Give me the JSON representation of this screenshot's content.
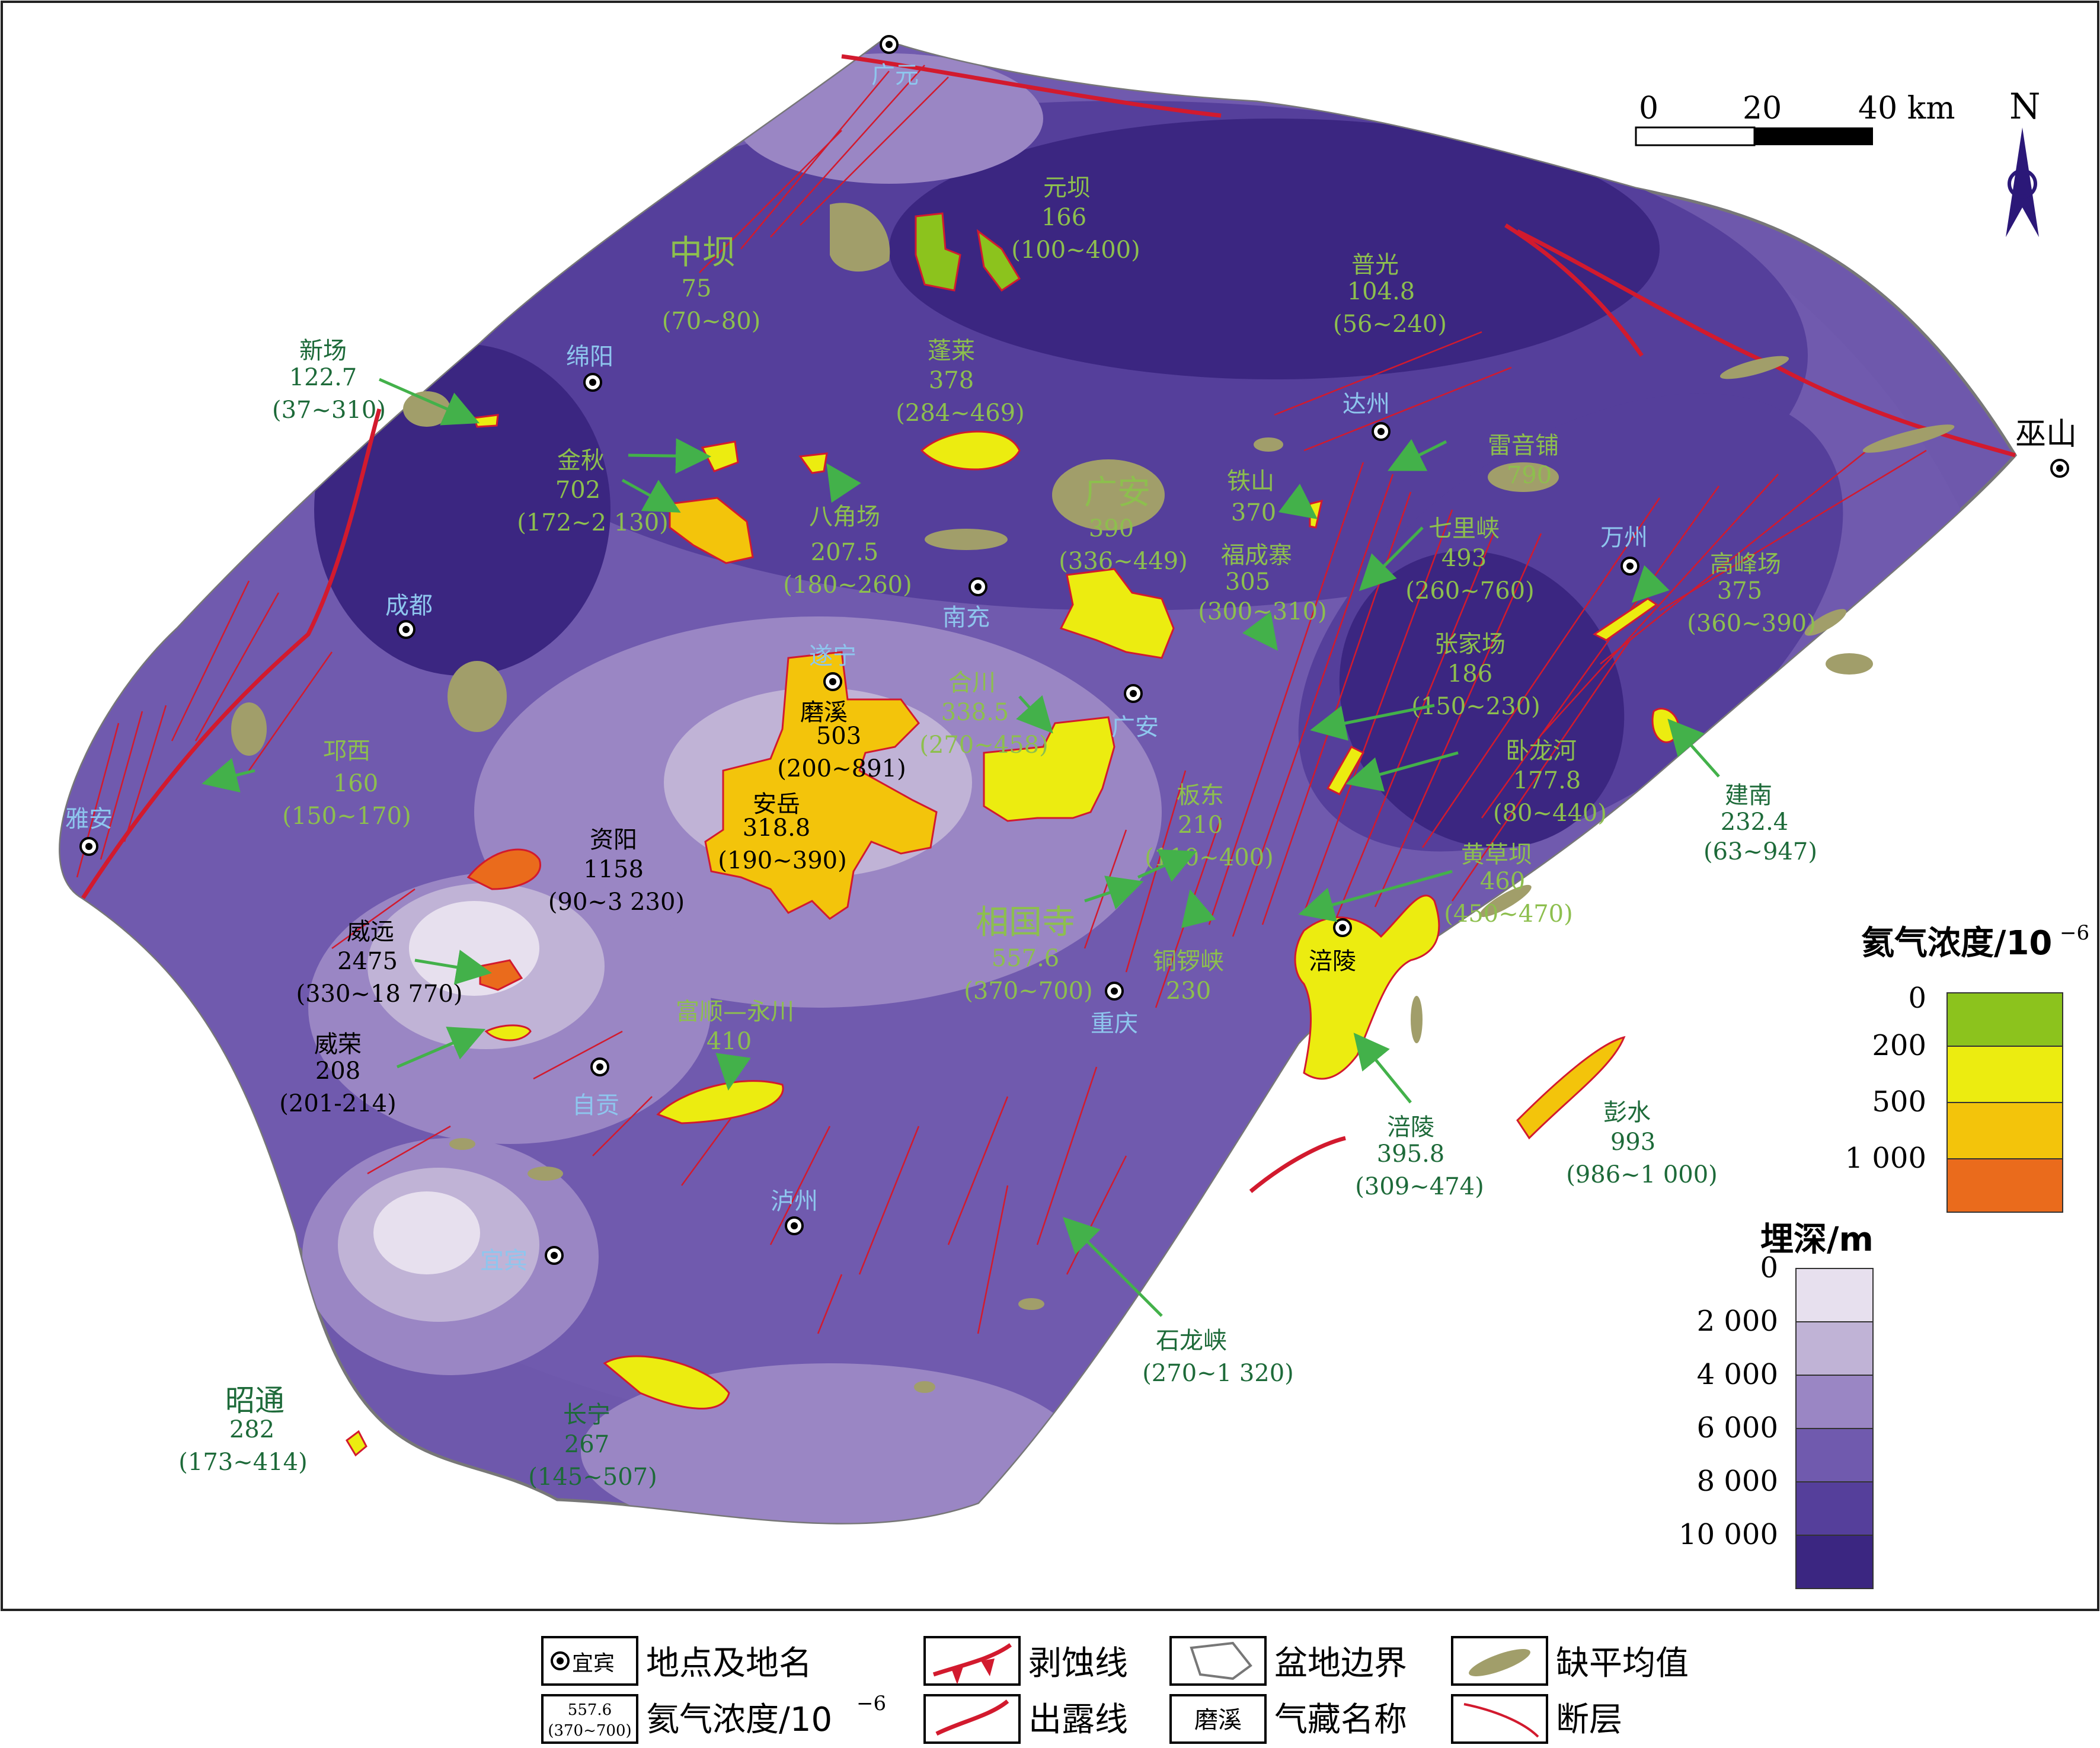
{
  "colors": {
    "depth": [
      "#e7e0ee",
      "#c0b3d6",
      "#9a86c4",
      "#705aae",
      "#553f9b",
      "#3b2681"
    ],
    "helium": [
      "#8cc31d",
      "#ecec10",
      "#f3c40b",
      "#ea6b1c"
    ],
    "missing_values": "#a19e6a",
    "fault_red": "#d21a2e",
    "city_blue": "#8ec6ee",
    "gas_green": "#8dbf4e",
    "dark_green": "#1d6a39",
    "arrow_green": "#43b14a"
  },
  "scale_bar": {
    "ticks": [
      "0",
      "20",
      "40 km"
    ]
  },
  "north": {
    "label": "N",
    "icon": "north-arrow-icon"
  },
  "cities": {
    "guangyuan": "广元",
    "mianyang": "绵阳",
    "dazhou": "达州",
    "wushan": "巫山",
    "wanzhou": "万州",
    "chengdu": "成都",
    "nanchong": "南充",
    "suining": "遂宁",
    "guangan": "广安",
    "ya_an": "雅安",
    "chongqing": "重庆",
    "fuling": "涪陵",
    "zigong": "自贡",
    "luzhou": "泸州",
    "yibin": "宜宾"
  },
  "gas_fields": {
    "zhongba": {
      "name": "中坝",
      "value": "75",
      "range": "(70~80)"
    },
    "yuanba": {
      "name": "元坝",
      "value": "166",
      "range": "(100~400)"
    },
    "puguang": {
      "name": "普光",
      "value": "104.8",
      "range": "(56~240)"
    },
    "xinchang": {
      "name": "新场",
      "value": "122.7",
      "range": "(37~310)"
    },
    "penglai": {
      "name": "蓬莱",
      "value": "378",
      "range": "(284~469)"
    },
    "jinqiu": {
      "name": "金秋",
      "value": "702",
      "range": "(172~2 130)"
    },
    "bajiaochang": {
      "name": "八角场",
      "value": "207.5",
      "range": "(180~260)"
    },
    "guangan": {
      "name": "广安",
      "value": "390",
      "range": "(336~449)"
    },
    "leiyinpu": {
      "name": "雷音铺",
      "value": "790"
    },
    "tieshan": {
      "name": "铁山",
      "value": "370"
    },
    "qilixia": {
      "name": "七里峡",
      "value": "493",
      "range": "(260~760)"
    },
    "fuchengzhai": {
      "name": "福成寨",
      "value": "305",
      "range": "(300~310)"
    },
    "gaofengchang": {
      "name": "高峰场",
      "value": "375",
      "range": "(360~390)"
    },
    "zhangjiachang": {
      "name": "张家场",
      "value": "186",
      "range": "(150~230)"
    },
    "moxi": {
      "name": "磨溪",
      "value": "503",
      "range": "(200~891)"
    },
    "hechuan": {
      "name": "合川",
      "value": "338.5",
      "range": "(270~458)"
    },
    "anyue": {
      "name": "安岳",
      "value": "318.8",
      "range": "(190~390)"
    },
    "qiongxi": {
      "name": "邛西",
      "value": "160",
      "range": "(150~170)"
    },
    "wolonghe": {
      "name": "卧龙河",
      "value": "177.8",
      "range": "(80~440)"
    },
    "jiannan": {
      "name": "建南",
      "value": "232.4",
      "range": "(63~947)"
    },
    "bandong": {
      "name": "板东",
      "value": "210",
      "range": "(110~400)"
    },
    "huangcaoba": {
      "name": "黄草坝",
      "value": "460",
      "range": "(450~470)"
    },
    "ziyang": {
      "name": "资阳",
      "value": "1158",
      "range": "(90~3 230)"
    },
    "weiyuan": {
      "name": "威远",
      "value": "2475",
      "range": "(330~18 770)"
    },
    "xiangguosi": {
      "name": "相国寺",
      "value": "557.6",
      "range": "(370~700)"
    },
    "tongluoxia": {
      "name": "铜锣峡",
      "value": "230"
    },
    "weirong": {
      "name": "威荣",
      "value": "208",
      "range": "(201-214)"
    },
    "fushun": {
      "name": "富顺—永川",
      "value": "410"
    },
    "fuling": {
      "name": "涪陵",
      "value": "395.8",
      "range": "(309~474)"
    },
    "pengshui": {
      "name": "彭水",
      "value": "993",
      "range": "(986~1 000)"
    },
    "shilongxia": {
      "name": "石龙峡",
      "range": "(270~1 320)"
    },
    "zhaotong": {
      "name": "昭通",
      "value": "282",
      "range": "(173~414)"
    },
    "changning": {
      "name": "长宁",
      "value": "267",
      "range": "(145~507)"
    }
  },
  "helium_legend": {
    "title": "氦气浓度/10",
    "exp": "−6",
    "ticks": [
      "0",
      "200",
      "500",
      "1 000"
    ]
  },
  "depth_legend": {
    "title": "埋深/m",
    "ticks": [
      "0",
      "2 000",
      "4 000",
      "6 000",
      "8 000",
      "10 000"
    ]
  },
  "bottom_legend": {
    "location": {
      "sample": "宜宾",
      "label": "地点及地名"
    },
    "erosion": {
      "label": "剥蚀线"
    },
    "boundary": {
      "label": "盆地边界"
    },
    "missing": {
      "label": "缺平均值"
    },
    "helium": {
      "sample_value": "557.6",
      "sample_range": "(370~700)",
      "label": "氦气浓度/10",
      "exp": "−6"
    },
    "outcrop": {
      "label": "出露线"
    },
    "gasname": {
      "sample": "磨溪",
      "label": "气藏名称"
    },
    "fault": {
      "label": "断层"
    }
  }
}
